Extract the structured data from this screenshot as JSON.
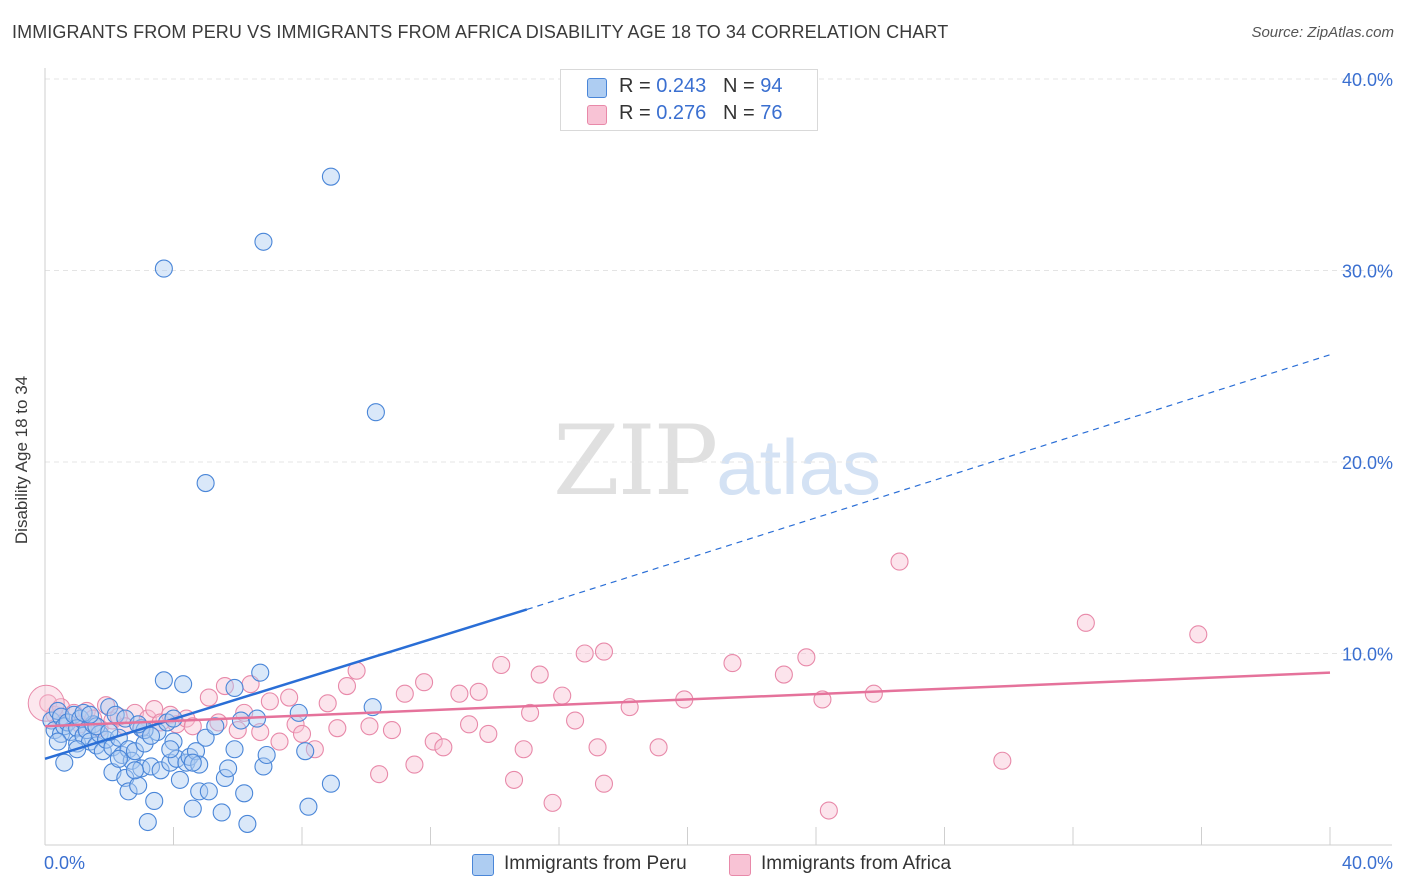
{
  "header": {
    "title": "IMMIGRANTS FROM PERU VS IMMIGRANTS FROM AFRICA DISABILITY AGE 18 TO 34 CORRELATION CHART",
    "source": "Source: ZipAtlas.com"
  },
  "legend_top": {
    "rows": [
      {
        "r_label": "R =",
        "r_value": "0.243",
        "n_label": "N =",
        "n_value": "94"
      },
      {
        "r_label": "R =",
        "r_value": "0.276",
        "n_label": "N =",
        "n_value": "76"
      }
    ]
  },
  "watermark": {
    "zip": "ZIP",
    "atlas": "atlas"
  },
  "colors": {
    "peru_fill": "#aecdf2",
    "peru_stroke": "#4a86d8",
    "peru_line": "#2a6ed6",
    "africa_fill": "#f8c3d5",
    "africa_stroke": "#e889a9",
    "africa_line": "#e5729b",
    "grid": "#e4e4e4",
    "tick_text": "#3a6fd0"
  },
  "chart_data": {
    "type": "scatter",
    "title": "IMMIGRANTS FROM PERU VS IMMIGRANTS FROM AFRICA DISABILITY AGE 18 TO 34 CORRELATION CHART",
    "xlabel": "",
    "ylabel": "Disability Age 18 to 34",
    "xlim": [
      0,
      40
    ],
    "ylim": [
      0,
      40
    ],
    "x_tick_labels": [
      "0.0%",
      "40.0%"
    ],
    "y_ticks": [
      10,
      20,
      30,
      40
    ],
    "y_tick_labels": [
      "10.0%",
      "20.0%",
      "30.0%",
      "40.0%"
    ],
    "grid": true,
    "legend_position": "bottom",
    "series": [
      {
        "name": "Immigrants from Peru",
        "r": 0.243,
        "n": 94,
        "trend": {
          "x0": 0,
          "y0": 4.5,
          "x1": 15,
          "y1": 12.3,
          "dash_x1": 40,
          "dash_y1": 25.6
        },
        "points": [
          [
            0.2,
            6.5
          ],
          [
            0.3,
            6.0
          ],
          [
            0.4,
            7.0
          ],
          [
            0.5,
            5.8
          ],
          [
            0.5,
            6.7
          ],
          [
            0.6,
            6.2
          ],
          [
            0.7,
            6.4
          ],
          [
            0.8,
            5.9
          ],
          [
            0.9,
            6.8
          ],
          [
            1.0,
            6.1
          ],
          [
            1.0,
            5.3
          ],
          [
            1.1,
            6.6
          ],
          [
            1.2,
            5.7
          ],
          [
            1.3,
            6.0
          ],
          [
            1.4,
            5.4
          ],
          [
            1.5,
            6.3
          ],
          [
            1.6,
            5.2
          ],
          [
            1.7,
            5.8
          ],
          [
            1.8,
            4.9
          ],
          [
            1.9,
            5.5
          ],
          [
            2.0,
            7.2
          ],
          [
            2.1,
            5.1
          ],
          [
            2.1,
            3.8
          ],
          [
            2.2,
            6.8
          ],
          [
            2.3,
            5.6
          ],
          [
            2.4,
            4.7
          ],
          [
            2.5,
            3.5
          ],
          [
            2.6,
            5.0
          ],
          [
            2.6,
            2.8
          ],
          [
            2.7,
            4.4
          ],
          [
            2.8,
            4.9
          ],
          [
            2.9,
            3.1
          ],
          [
            3.0,
            6.1
          ],
          [
            3.0,
            4.0
          ],
          [
            3.1,
            5.3
          ],
          [
            3.2,
            1.2
          ],
          [
            3.3,
            4.1
          ],
          [
            3.4,
            2.3
          ],
          [
            3.5,
            5.9
          ],
          [
            3.6,
            3.9
          ],
          [
            3.7,
            8.6
          ],
          [
            3.8,
            6.4
          ],
          [
            3.9,
            4.3
          ],
          [
            4.0,
            5.4
          ],
          [
            4.1,
            4.5
          ],
          [
            4.2,
            3.4
          ],
          [
            4.3,
            8.4
          ],
          [
            4.4,
            4.3
          ],
          [
            4.5,
            4.6
          ],
          [
            4.6,
            1.9
          ],
          [
            4.7,
            4.9
          ],
          [
            4.8,
            4.2
          ],
          [
            4.8,
            2.8
          ],
          [
            5.0,
            5.6
          ],
          [
            5.1,
            2.8
          ],
          [
            5.3,
            6.2
          ],
          [
            5.5,
            1.7
          ],
          [
            5.6,
            3.5
          ],
          [
            5.7,
            4.0
          ],
          [
            5.9,
            8.2
          ],
          [
            5.9,
            5.0
          ],
          [
            6.1,
            6.5
          ],
          [
            6.2,
            2.7
          ],
          [
            6.3,
            1.1
          ],
          [
            6.6,
            6.6
          ],
          [
            6.7,
            9.0
          ],
          [
            6.8,
            4.1
          ],
          [
            6.9,
            4.7
          ],
          [
            7.9,
            6.9
          ],
          [
            8.1,
            4.9
          ],
          [
            8.2,
            2.0
          ],
          [
            8.9,
            3.2
          ],
          [
            10.2,
            7.2
          ],
          [
            3.7,
            30.1
          ],
          [
            6.8,
            31.5
          ],
          [
            8.9,
            34.9
          ],
          [
            10.3,
            22.6
          ],
          [
            5.0,
            18.9
          ],
          [
            0.4,
            5.4
          ],
          [
            1.2,
            6.9
          ],
          [
            1.6,
            6.2
          ],
          [
            2.3,
            4.5
          ],
          [
            2.8,
            3.9
          ],
          [
            3.1,
            6.0
          ],
          [
            3.9,
            5.0
          ],
          [
            0.6,
            4.3
          ],
          [
            1.4,
            6.8
          ],
          [
            2.0,
            5.9
          ],
          [
            2.5,
            6.6
          ],
          [
            3.3,
            5.7
          ],
          [
            4.0,
            6.6
          ],
          [
            4.6,
            4.3
          ],
          [
            1.0,
            5.0
          ],
          [
            2.9,
            6.3
          ]
        ]
      },
      {
        "name": "Immigrants from Africa",
        "r": 0.276,
        "n": 76,
        "trend": {
          "x0": 0,
          "y0": 6.2,
          "x1": 40,
          "y1": 9.0
        },
        "points": [
          [
            0.1,
            7.4
          ],
          [
            0.3,
            6.8
          ],
          [
            0.5,
            7.2
          ],
          [
            0.7,
            6.4
          ],
          [
            0.9,
            6.9
          ],
          [
            1.1,
            6.3
          ],
          [
            1.3,
            7.0
          ],
          [
            1.5,
            6.6
          ],
          [
            1.7,
            6.1
          ],
          [
            1.9,
            7.3
          ],
          [
            2.1,
            6.5
          ],
          [
            2.3,
            6.7
          ],
          [
            2.5,
            6.2
          ],
          [
            2.8,
            6.9
          ],
          [
            3.0,
            6.1
          ],
          [
            3.2,
            6.6
          ],
          [
            3.4,
            7.1
          ],
          [
            3.6,
            6.4
          ],
          [
            3.9,
            6.8
          ],
          [
            4.1,
            6.3
          ],
          [
            4.4,
            6.6
          ],
          [
            4.6,
            6.2
          ],
          [
            5.1,
            7.7
          ],
          [
            5.4,
            6.4
          ],
          [
            5.6,
            8.3
          ],
          [
            6.0,
            6.0
          ],
          [
            6.2,
            6.9
          ],
          [
            6.4,
            8.4
          ],
          [
            6.7,
            5.9
          ],
          [
            7.0,
            7.5
          ],
          [
            7.3,
            5.4
          ],
          [
            7.6,
            7.7
          ],
          [
            7.8,
            6.3
          ],
          [
            8.0,
            5.8
          ],
          [
            8.4,
            5.0
          ],
          [
            8.8,
            7.4
          ],
          [
            9.1,
            6.1
          ],
          [
            9.4,
            8.3
          ],
          [
            9.7,
            9.1
          ],
          [
            10.1,
            6.2
          ],
          [
            10.4,
            3.7
          ],
          [
            10.8,
            6.0
          ],
          [
            11.2,
            7.9
          ],
          [
            11.5,
            4.2
          ],
          [
            11.8,
            8.5
          ],
          [
            12.1,
            5.4
          ],
          [
            12.4,
            5.1
          ],
          [
            12.9,
            7.9
          ],
          [
            13.2,
            6.3
          ],
          [
            13.5,
            8.0
          ],
          [
            13.8,
            5.8
          ],
          [
            14.2,
            9.4
          ],
          [
            14.6,
            3.4
          ],
          [
            14.9,
            5.0
          ],
          [
            15.1,
            6.9
          ],
          [
            15.4,
            8.9
          ],
          [
            15.8,
            2.2
          ],
          [
            16.1,
            7.8
          ],
          [
            16.5,
            6.5
          ],
          [
            16.8,
            10.0
          ],
          [
            17.2,
            5.1
          ],
          [
            17.4,
            3.2
          ],
          [
            17.4,
            10.1
          ],
          [
            18.2,
            7.2
          ],
          [
            19.1,
            5.1
          ],
          [
            19.9,
            7.6
          ],
          [
            21.4,
            9.5
          ],
          [
            23.0,
            8.9
          ],
          [
            23.7,
            9.8
          ],
          [
            24.2,
            7.6
          ],
          [
            24.4,
            1.8
          ],
          [
            25.8,
            7.9
          ],
          [
            26.6,
            14.8
          ],
          [
            29.8,
            4.4
          ],
          [
            32.4,
            11.6
          ],
          [
            35.9,
            11.0
          ]
        ]
      }
    ]
  },
  "legend_bottom": {
    "items": [
      {
        "label": "Immigrants from Peru"
      },
      {
        "label": "Immigrants from Africa"
      }
    ]
  }
}
